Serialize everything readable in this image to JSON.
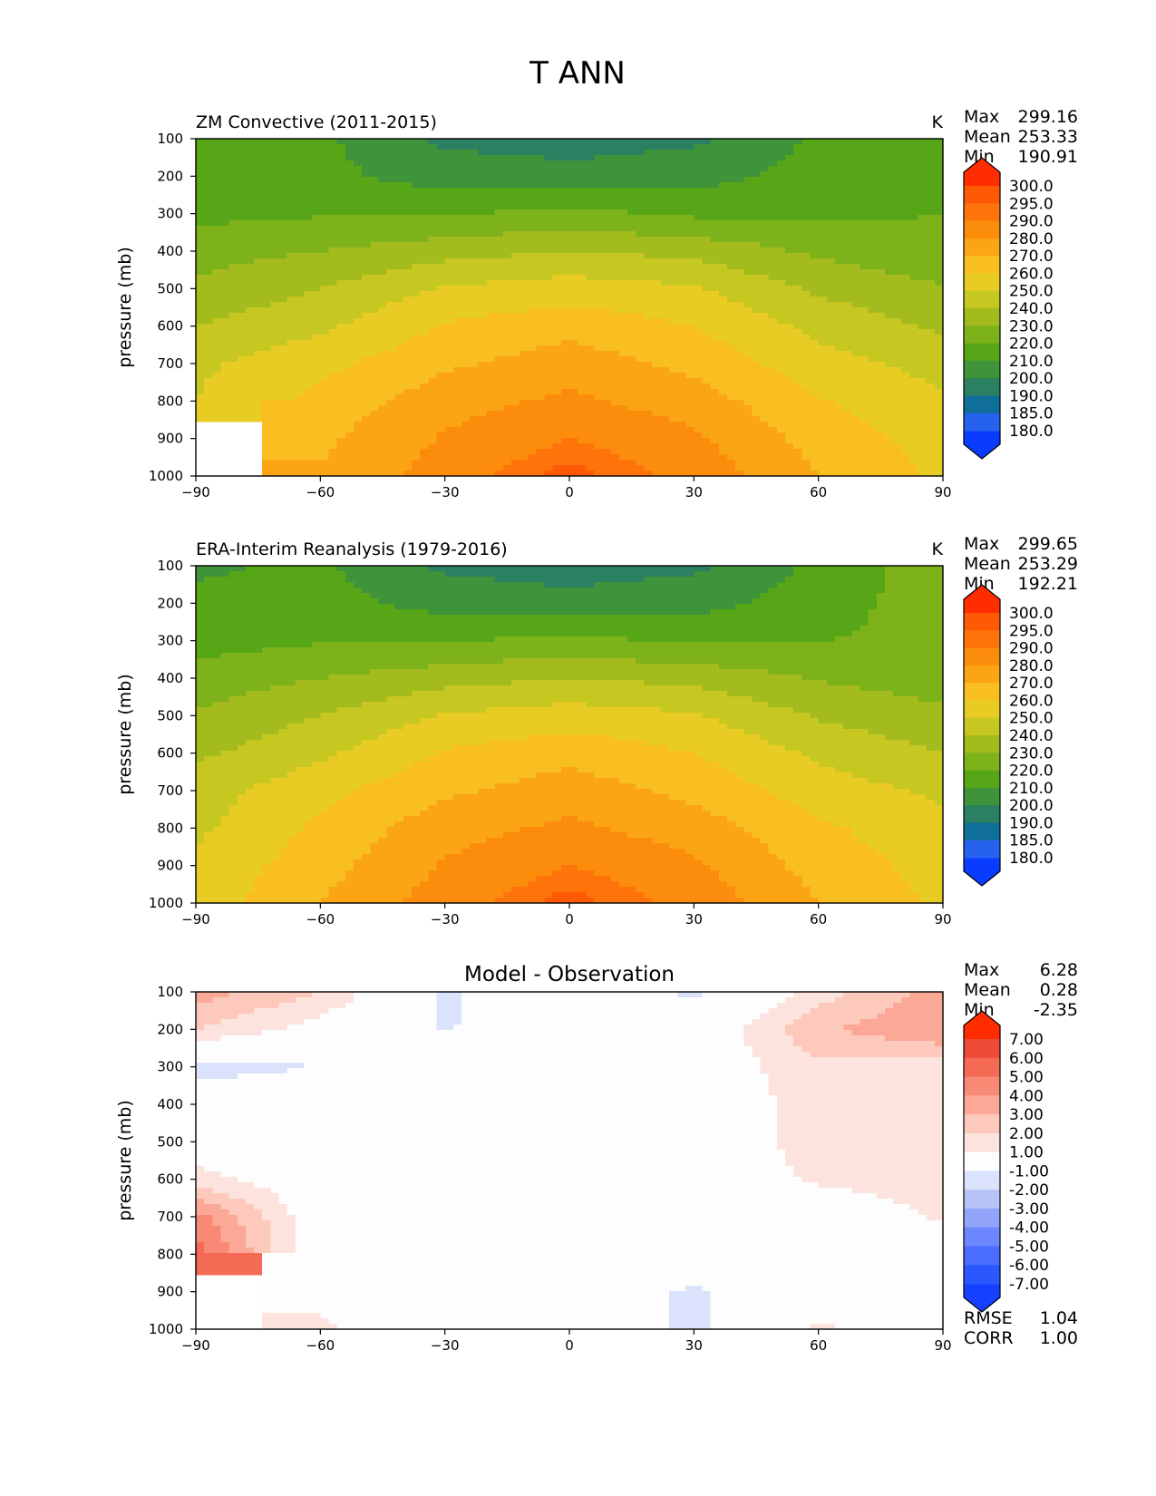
{
  "figure_title": "T ANN",
  "colors": {
    "abs_levels": [
      "#0a3cff",
      "#2563ee",
      "#0f6e9a",
      "#2a8060",
      "#3f933a",
      "#57a617",
      "#7eb21a",
      "#a4bb1e",
      "#c6c720",
      "#e8cc24",
      "#f9be20",
      "#fba514",
      "#fc8d0c",
      "#fe740a",
      "#fe5a05",
      "#ff2d00"
    ],
    "diff_levels": [
      "#1540ff",
      "#2b57ff",
      "#4a6cff",
      "#6d87ff",
      "#93a4fb",
      "#b7c3f7",
      "#dbe2fb",
      "#fdfdfd",
      "#fde3dd",
      "#fcc9bc",
      "#fba896",
      "#f88974",
      "#f56a54",
      "#ee4b36",
      "#e82e1c",
      "#ff2d00"
    ]
  },
  "panels": [
    {
      "id": "model",
      "title": "ZM Convective (2011-2015)",
      "units": "K",
      "stats": [
        {
          "label": "Max",
          "value": "299.16"
        },
        {
          "label": "Mean",
          "value": "253.33"
        },
        {
          "label": "Min",
          "value": "190.91"
        }
      ],
      "colorbar_labels": [
        "300.0",
        "295.0",
        "290.0",
        "280.0",
        "270.0",
        "260.0",
        "250.0",
        "240.0",
        "230.0",
        "220.0",
        "210.0",
        "200.0",
        "190.0",
        "185.0",
        "180.0"
      ]
    },
    {
      "id": "obs",
      "title": "ERA-Interim Reanalysis (1979-2016)",
      "units": "K",
      "stats": [
        {
          "label": "Max",
          "value": "299.65"
        },
        {
          "label": "Mean",
          "value": "253.29"
        },
        {
          "label": "Min",
          "value": "192.21"
        }
      ],
      "colorbar_labels": [
        "300.0",
        "295.0",
        "290.0",
        "280.0",
        "270.0",
        "260.0",
        "250.0",
        "240.0",
        "230.0",
        "220.0",
        "210.0",
        "200.0",
        "190.0",
        "185.0",
        "180.0"
      ]
    },
    {
      "id": "diff",
      "title": "Model - Observation",
      "units": "",
      "stats": [
        {
          "label": "Max",
          "value": "6.28"
        },
        {
          "label": "Mean",
          "value": "0.28"
        },
        {
          "label": "Min",
          "value": "-2.35"
        }
      ],
      "colorbar_labels": [
        "7.00",
        "6.00",
        "5.00",
        "4.00",
        "3.00",
        "2.00",
        "1.00",
        "-1.00",
        "-2.00",
        "-3.00",
        "-4.00",
        "-5.00",
        "-6.00",
        "-7.00"
      ],
      "extra_stats": [
        {
          "label": "RMSE",
          "value": "1.04"
        },
        {
          "label": "CORR",
          "value": "1.00"
        }
      ]
    }
  ],
  "chart_data": [
    {
      "type": "heatmap",
      "title": "ZM Convective (2011-2015)",
      "ylabel": "pressure (mb)",
      "xlabel": "",
      "xlim": [
        -90,
        90
      ],
      "ylim": [
        1000,
        100
      ],
      "xticks": [
        -90,
        -60,
        -30,
        0,
        30,
        60,
        90
      ],
      "xtick_labels": [
        "−90",
        "−60",
        "−30",
        "0",
        "30",
        "60",
        "90"
      ],
      "yticks": [
        100,
        200,
        300,
        400,
        500,
        600,
        700,
        800,
        900,
        1000
      ],
      "units": "K",
      "lat": [
        -90,
        -60,
        -30,
        0,
        30,
        60,
        90
      ],
      "plev": [
        100,
        200,
        300,
        400,
        500,
        600,
        700,
        800,
        900,
        1000
      ],
      "values": [
        [
          210,
          212,
          198,
          196,
          198,
          212,
          213
        ],
        [
          214,
          213,
          205,
          203,
          206,
          214,
          219
        ],
        [
          217,
          219,
          219,
          223,
          218,
          218,
          220
        ],
        [
          226,
          230,
          236,
          240,
          237,
          228,
          222
        ],
        [
          232,
          240,
          251,
          255,
          251,
          238,
          231
        ],
        [
          240,
          248,
          261,
          267,
          260,
          247,
          238
        ],
        [
          248,
          257,
          268,
          275,
          267,
          254,
          246
        ],
        [
          250,
          263,
          276,
          282,
          275,
          261,
          252
        ],
        [
          null,
          268,
          281,
          290,
          282,
          266,
          256
        ],
        [
          null,
          271,
          285,
          298,
          287,
          270,
          258
        ]
      ]
    },
    {
      "type": "heatmap",
      "title": "ERA-Interim Reanalysis (1979-2016)",
      "ylabel": "pressure (mb)",
      "xlabel": "",
      "xlim": [
        -90,
        90
      ],
      "ylim": [
        1000,
        100
      ],
      "xticks": [
        -90,
        -60,
        -30,
        0,
        30,
        60,
        90
      ],
      "xtick_labels": [
        "−90",
        "−60",
        "−30",
        "0",
        "30",
        "60",
        "90"
      ],
      "yticks": [
        100,
        200,
        300,
        400,
        500,
        600,
        700,
        800,
        900,
        1000
      ],
      "units": "K",
      "lat": [
        -90,
        -60,
        -30,
        0,
        30,
        60,
        90
      ],
      "plev": [
        100,
        200,
        300,
        400,
        500,
        600,
        700,
        800,
        900,
        1000
      ],
      "values": [
        [
          208,
          212,
          198,
          196,
          198,
          212,
          226
        ],
        [
          213,
          214,
          206,
          203,
          206,
          216,
          225
        ],
        [
          216,
          219,
          219,
          223,
          218,
          220,
          221
        ],
        [
          224,
          230,
          236,
          240,
          237,
          229,
          225
        ],
        [
          231,
          240,
          251,
          255,
          251,
          239,
          232
        ],
        [
          238,
          248,
          261,
          267,
          260,
          248,
          240
        ],
        [
          245,
          257,
          268,
          275,
          267,
          255,
          248
        ],
        [
          248,
          262,
          276,
          282,
          275,
          262,
          253
        ],
        [
          252,
          266,
          281,
          290,
          282,
          266,
          256
        ],
        [
          254,
          270,
          285,
          298,
          287,
          270,
          258
        ]
      ]
    },
    {
      "type": "heatmap",
      "title": "Model - Observation",
      "ylabel": "pressure (mb)",
      "xlabel": "",
      "xlim": [
        -90,
        90
      ],
      "ylim": [
        1000,
        100
      ],
      "xticks": [
        -90,
        -60,
        -30,
        0,
        30,
        60,
        90
      ],
      "xtick_labels": [
        "−90",
        "−60",
        "−30",
        "0",
        "30",
        "60",
        "90"
      ],
      "yticks": [
        100,
        200,
        300,
        400,
        500,
        600,
        700,
        800,
        900,
        1000
      ],
      "units": "",
      "lat": [
        -90,
        -60,
        -30,
        0,
        30,
        60,
        90
      ],
      "plev": [
        100,
        200,
        300,
        400,
        500,
        600,
        700,
        800,
        900,
        1000
      ],
      "values": [
        [
          3.5,
          2.0,
          -1.2,
          0.0,
          -1.2,
          1.5,
          3.5
        ],
        [
          2.0,
          0.5,
          -1.1,
          0.0,
          0.0,
          2.8,
          4.0
        ],
        [
          -1.5,
          -1.0,
          0.0,
          0.0,
          0.0,
          1.8,
          1.5
        ],
        [
          0.0,
          0.0,
          0.0,
          0.0,
          0.0,
          1.5,
          1.5
        ],
        [
          0.0,
          0.0,
          0.0,
          0.0,
          0.0,
          1.5,
          1.5
        ],
        [
          1.5,
          0.0,
          0.0,
          0.0,
          0.0,
          1.2,
          1.5
        ],
        [
          4.5,
          0.0,
          0.0,
          0.0,
          0.0,
          0.0,
          1.2
        ],
        [
          5.5,
          0.0,
          0.0,
          0.0,
          0.0,
          0.0,
          0.0
        ],
        [
          null,
          0.0,
          0.0,
          0.0,
          -1.2,
          0.0,
          0.0
        ],
        [
          null,
          1.5,
          -1.1,
          0.0,
          -1.3,
          1.2,
          0.0
        ]
      ]
    }
  ]
}
